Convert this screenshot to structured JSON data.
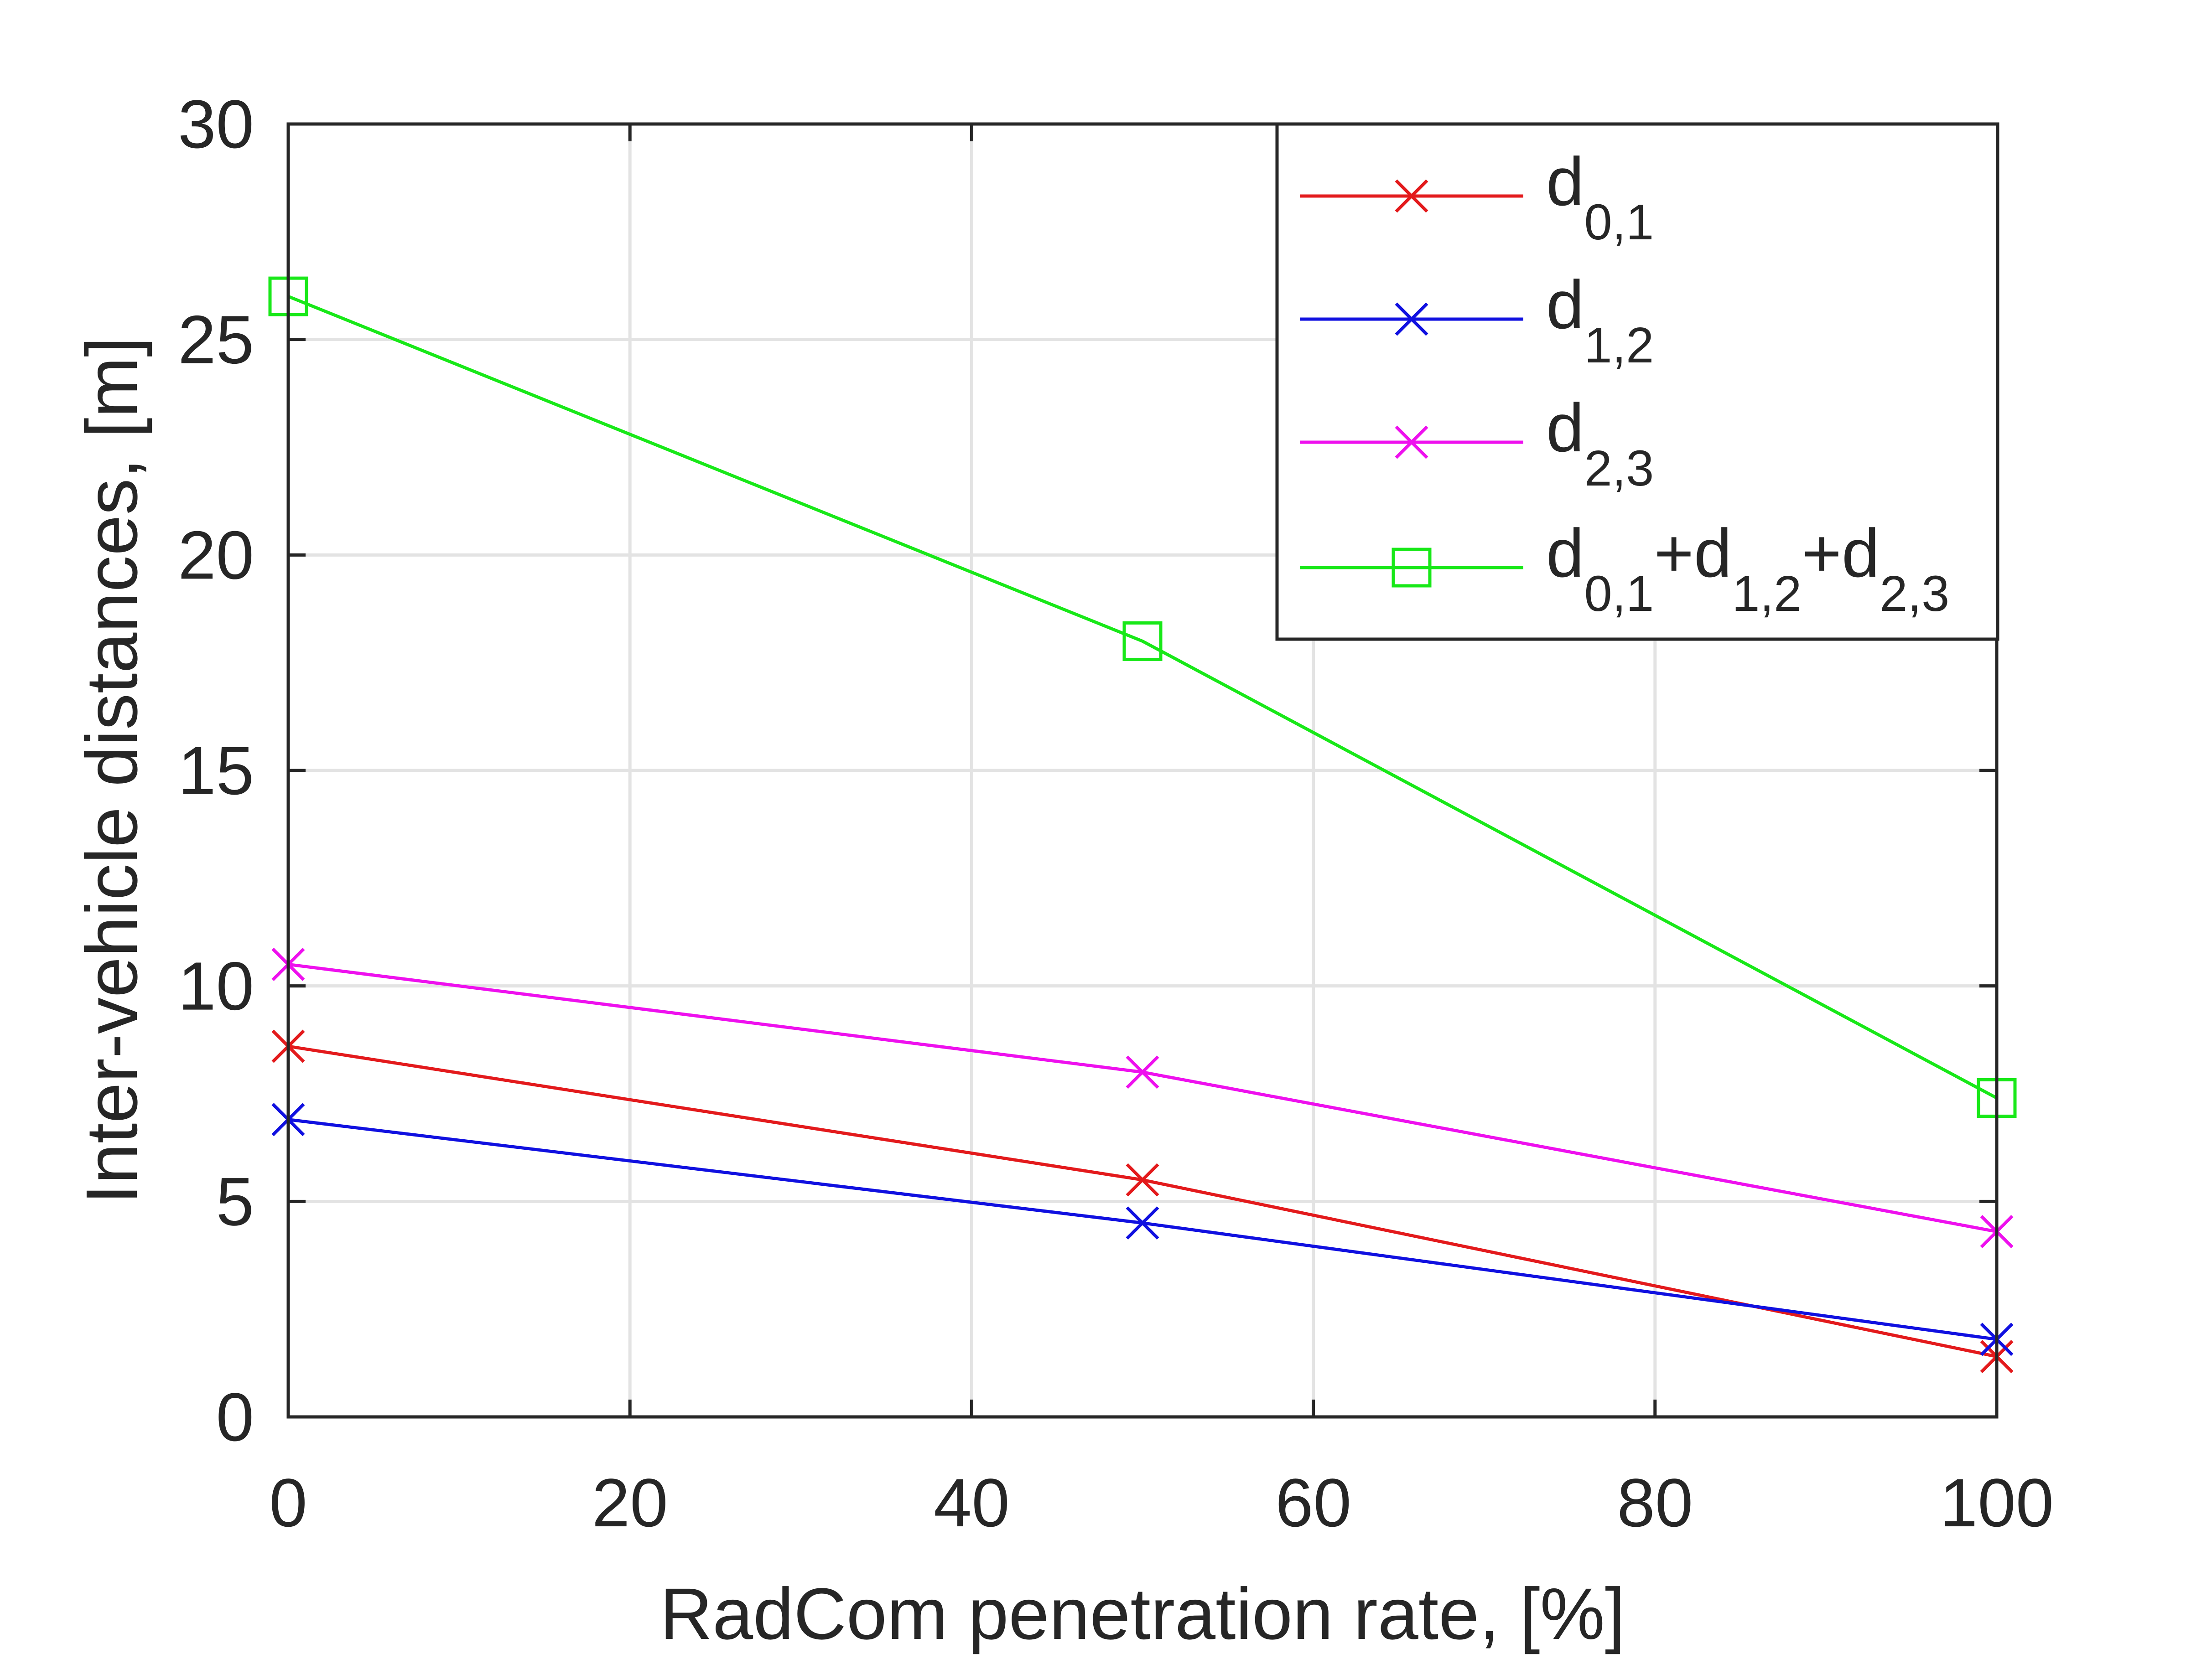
{
  "chart_data": {
    "type": "line",
    "title": "",
    "xlabel": "RadCom penetration rate, [%]",
    "ylabel": "Inter-vehicle distances, [m]",
    "xlim": [
      0,
      100
    ],
    "ylim": [
      0,
      30
    ],
    "xticks": [
      0,
      20,
      40,
      60,
      80,
      100
    ],
    "yticks": [
      0,
      5,
      10,
      15,
      20,
      25,
      30
    ],
    "xtick_labels": [
      "0",
      "20",
      "40",
      "60",
      "80",
      "100"
    ],
    "ytick_labels": [
      "0",
      "5",
      "10",
      "15",
      "20",
      "25",
      "30"
    ],
    "grid": true,
    "legend_position": "top-right",
    "x": [
      0,
      50,
      100
    ],
    "series": [
      {
        "name": "d_{0,1}",
        "legend": {
          "base": "d",
          "sub": "0,1"
        },
        "color": "#e31a1c",
        "marker": "x",
        "values": [
          8.6,
          5.5,
          1.4
        ]
      },
      {
        "name": "d_{1,2}",
        "legend": {
          "base": "d",
          "sub": "1,2"
        },
        "color": "#1010e0",
        "marker": "x",
        "values": [
          6.9,
          4.5,
          1.8
        ]
      },
      {
        "name": "d_{2,3}",
        "legend": {
          "base": "d",
          "sub": "2,3"
        },
        "color": "#ee10ee",
        "marker": "x",
        "values": [
          10.5,
          8.0,
          4.3
        ]
      },
      {
        "name": "d_{0,1}+d_{1,2}+d_{2,3}",
        "legend": {
          "parts": [
            {
              "base": "d",
              "sub": "0,1"
            },
            {
              "base": "+d",
              "sub": "1,2"
            },
            {
              "base": "+d",
              "sub": "2,3"
            }
          ]
        },
        "color": "#18e818",
        "marker": "square",
        "values": [
          26.0,
          18.0,
          7.4
        ]
      }
    ]
  }
}
